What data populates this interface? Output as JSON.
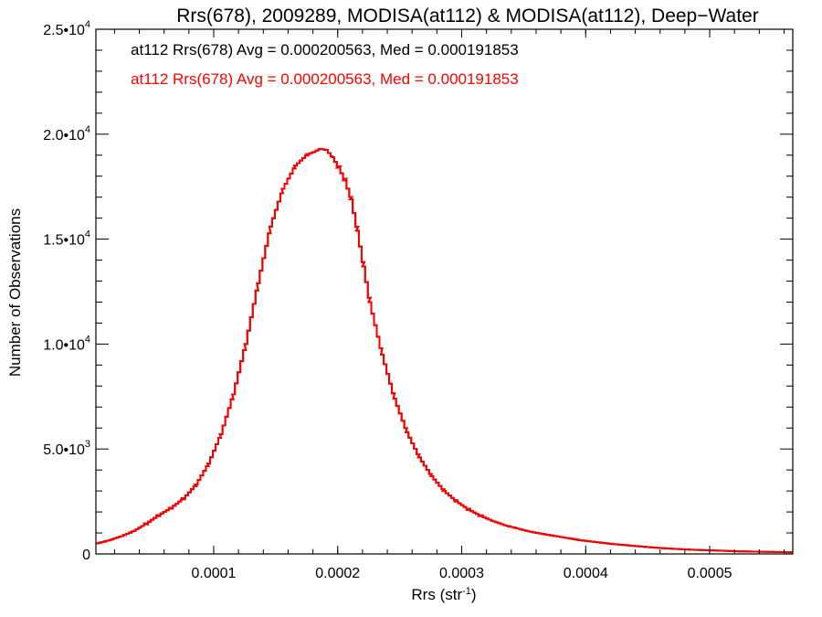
{
  "chart_data": {
    "type": "bar",
    "style": "step-histogram",
    "title": "Rrs(678), 2009289, MODISA(at112) & MODISA(at112), Deep−Water",
    "xlabel": "Rrs (str",
    "xlabel_sup": "-1",
    "xlabel_close": ")",
    "ylabel": "Number of Observations",
    "xlim": [
      5e-06,
      0.000567
    ],
    "ylim": [
      0,
      25000
    ],
    "x_ticks": [
      {
        "value": 0.0001,
        "label": "0.0001"
      },
      {
        "value": 0.0002,
        "label": "0.0002"
      },
      {
        "value": 0.0003,
        "label": "0.0003"
      },
      {
        "value": 0.0004,
        "label": "0.0004"
      },
      {
        "value": 0.0005,
        "label": "0.0005"
      }
    ],
    "y_ticks": [
      {
        "value": 0,
        "mant": "0",
        "exp": ""
      },
      {
        "value": 5000,
        "mant": "5.0•10",
        "exp": "3"
      },
      {
        "value": 10000,
        "mant": "1.0•10",
        "exp": "4"
      },
      {
        "value": 15000,
        "mant": "1.5•10",
        "exp": "4"
      },
      {
        "value": 20000,
        "mant": "2.0•10",
        "exp": "4"
      },
      {
        "value": 25000,
        "mant": "2.5•10",
        "exp": "4"
      }
    ],
    "annotations": [
      {
        "text": "at112 Rrs(678) Avg = 0.000200563, Med = 0.000191853",
        "color": "#000000"
      },
      {
        "text": "at112 Rrs(678) Avg = 0.000200563, Med = 0.000191853",
        "color": "#ff0000"
      }
    ],
    "series": [
      {
        "color": "#ff0000",
        "bin_width": 2.2e-06,
        "x": [
          6e-06,
          1.6e-05,
          2.6e-05,
          3.6e-05,
          4.6e-05,
          5.6e-05,
          6.6e-05,
          7.6e-05,
          8.6e-05,
          9.6e-05,
          0.000106,
          0.000116,
          0.000126,
          0.000136,
          0.000146,
          0.000156,
          0.000166,
          0.000176,
          0.000181,
          0.000186,
          0.000191,
          0.000196,
          0.000201,
          0.000206,
          0.000211,
          0.000216,
          0.000221,
          0.000226,
          0.000236,
          0.000246,
          0.000256,
          0.000266,
          0.000276,
          0.000286,
          0.000296,
          0.000306,
          0.000316,
          0.000326,
          0.000336,
          0.000346,
          0.000356,
          0.000366,
          0.000376,
          0.000386,
          0.000396,
          0.000406,
          0.000416,
          0.000426,
          0.000436,
          0.000446,
          0.000456,
          0.000466,
          0.000476,
          0.000486,
          0.000496,
          0.000506,
          0.000516,
          0.000526,
          0.000536,
          0.000546,
          0.000556,
          0.000566
        ],
        "y": [
          500,
          650,
          850,
          1100,
          1450,
          1850,
          2200,
          2650,
          3300,
          4300,
          5700,
          7600,
          10000,
          12900,
          15600,
          17400,
          18500,
          19050,
          19150,
          19300,
          19250,
          18900,
          18400,
          17800,
          16900,
          15400,
          13700,
          12000,
          9500,
          7400,
          5800,
          4600,
          3700,
          3000,
          2500,
          2100,
          1800,
          1550,
          1350,
          1200,
          1050,
          950,
          850,
          750,
          650,
          580,
          510,
          450,
          400,
          350,
          300,
          260,
          230,
          200,
          180,
          160,
          140,
          120,
          110,
          100,
          90,
          80
        ]
      },
      {
        "color": "#000000",
        "bin_width": 2.2e-06,
        "x": [
          6e-06,
          1.6e-05,
          2.6e-05,
          3.6e-05,
          4.6e-05,
          5.6e-05,
          6.6e-05,
          7.6e-05,
          8.6e-05,
          9.6e-05,
          0.000106,
          0.000116,
          0.000126,
          0.000136,
          0.000146,
          0.000156,
          0.000166,
          0.000176,
          0.000181,
          0.000186,
          0.000191,
          0.000196,
          0.000201,
          0.000206,
          0.000211,
          0.000216,
          0.000221,
          0.000226,
          0.000236,
          0.000246,
          0.000256,
          0.000266,
          0.000276,
          0.000286,
          0.000296,
          0.000306,
          0.000316,
          0.000326,
          0.000336,
          0.000346,
          0.000356,
          0.000366,
          0.000376,
          0.000386,
          0.000396,
          0.000406,
          0.000416,
          0.000426,
          0.000436,
          0.000446,
          0.000456,
          0.000466,
          0.000476,
          0.000486,
          0.000496,
          0.000506,
          0.000516,
          0.000526,
          0.000536,
          0.000546,
          0.000556,
          0.000566
        ],
        "y": [
          500,
          650,
          850,
          1100,
          1450,
          1850,
          2200,
          2650,
          3300,
          4300,
          5700,
          7600,
          10000,
          12900,
          15600,
          17400,
          18500,
          19050,
          19150,
          19300,
          19250,
          18900,
          18400,
          17800,
          16900,
          15400,
          13700,
          12000,
          9500,
          7400,
          5800,
          4600,
          3700,
          3000,
          2500,
          2100,
          1800,
          1550,
          1350,
          1200,
          1050,
          950,
          850,
          750,
          650,
          580,
          510,
          450,
          400,
          350,
          300,
          260,
          230,
          200,
          180,
          160,
          140,
          120,
          110,
          100,
          90,
          80
        ]
      }
    ]
  }
}
